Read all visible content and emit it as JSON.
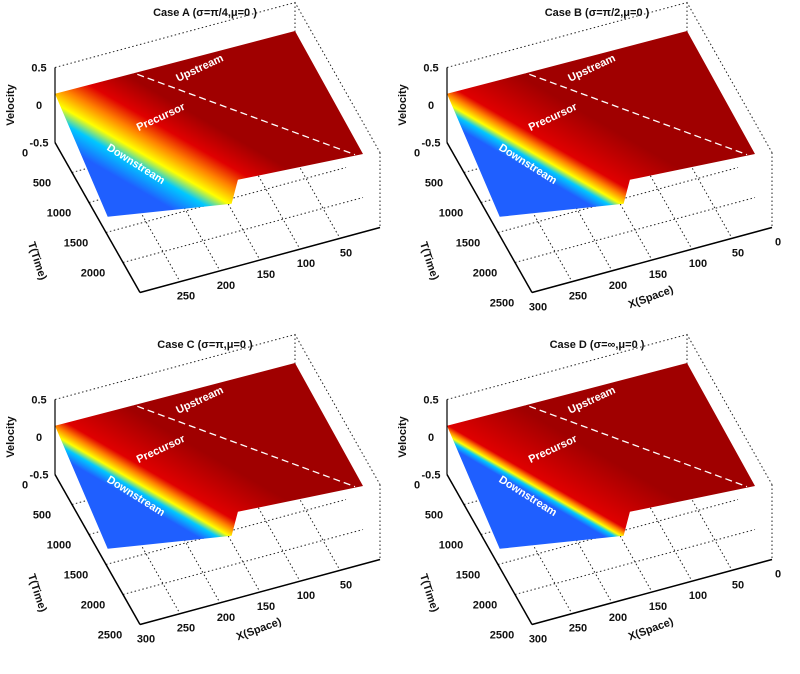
{
  "chart_data": [
    {
      "type": "surface",
      "title": "Case A (σ=π/4,μ=0 )",
      "xlabel": "X(Space)",
      "ylabel": "T(Time)",
      "zlabel": "Velocity",
      "zticks": [
        "0.5",
        "0",
        "-0.5"
      ],
      "tticks": [
        "0",
        "500",
        "1000",
        "1500",
        "2000"
      ],
      "xticks": [
        "250",
        "200",
        "150",
        "100",
        "50"
      ],
      "show_xlabel": false,
      "zlim": [
        -0.5,
        0.5
      ],
      "xlim": [
        0,
        300
      ],
      "tlim": [
        0,
        2500
      ],
      "regions": [
        "Upstream",
        "Precursor",
        "Downstream"
      ],
      "transition_sharpness": "wide"
    },
    {
      "type": "surface",
      "title": "Case B (σ=π/2,μ=0 )",
      "xlabel": "X(Space)",
      "ylabel": "T(Time)",
      "zlabel": "Velocity",
      "zticks": [
        "0.5",
        "0",
        "-0.5"
      ],
      "tticks": [
        "0",
        "500",
        "1000",
        "1500",
        "2000",
        "2500"
      ],
      "xticks": [
        "300",
        "250",
        "200",
        "150",
        "100",
        "50",
        "0"
      ],
      "show_xlabel": true,
      "zlim": [
        -0.5,
        0.5
      ],
      "xlim": [
        0,
        300
      ],
      "tlim": [
        0,
        2500
      ],
      "regions": [
        "Upstream",
        "Precursor",
        "Downstream"
      ],
      "transition_sharpness": "medium"
    },
    {
      "type": "surface",
      "title": "Case C (σ=π,μ=0 )",
      "xlabel": "X(Space)",
      "ylabel": "T(Time)",
      "zlabel": "Velocity",
      "zticks": [
        "0.5",
        "0",
        "-0.5"
      ],
      "tticks": [
        "0",
        "500",
        "1000",
        "1500",
        "2000",
        "2500"
      ],
      "xticks": [
        "300",
        "250",
        "200",
        "150",
        "100",
        "50"
      ],
      "show_xlabel": true,
      "zlim": [
        -0.5,
        0.5
      ],
      "xlim": [
        0,
        300
      ],
      "tlim": [
        0,
        2500
      ],
      "regions": [
        "Upstream",
        "Precursor",
        "Downstream"
      ],
      "transition_sharpness": "medium"
    },
    {
      "type": "surface",
      "title": "Case D (σ=∞,μ=0 )",
      "xlabel": "X(Space)",
      "ylabel": "T(Time)",
      "zlabel": "Velocity",
      "zticks": [
        "0.5",
        "0",
        "-0.5"
      ],
      "tticks": [
        "0",
        "500",
        "1000",
        "1500",
        "2000",
        "2500"
      ],
      "xticks": [
        "300",
        "250",
        "200",
        "150",
        "100",
        "50",
        "0"
      ],
      "show_xlabel": true,
      "zlim": [
        -0.5,
        0.5
      ],
      "xlim": [
        0,
        300
      ],
      "tlim": [
        0,
        2500
      ],
      "regions": [
        "Upstream",
        "Precursor",
        "Downstream"
      ],
      "transition_sharpness": "sharp"
    }
  ],
  "colors": {
    "high": "#a00000",
    "red": "#e00000",
    "orange": "#ff8000",
    "yellow": "#ffff00",
    "cyan": "#00c8ff",
    "low": "#1f5fff"
  }
}
